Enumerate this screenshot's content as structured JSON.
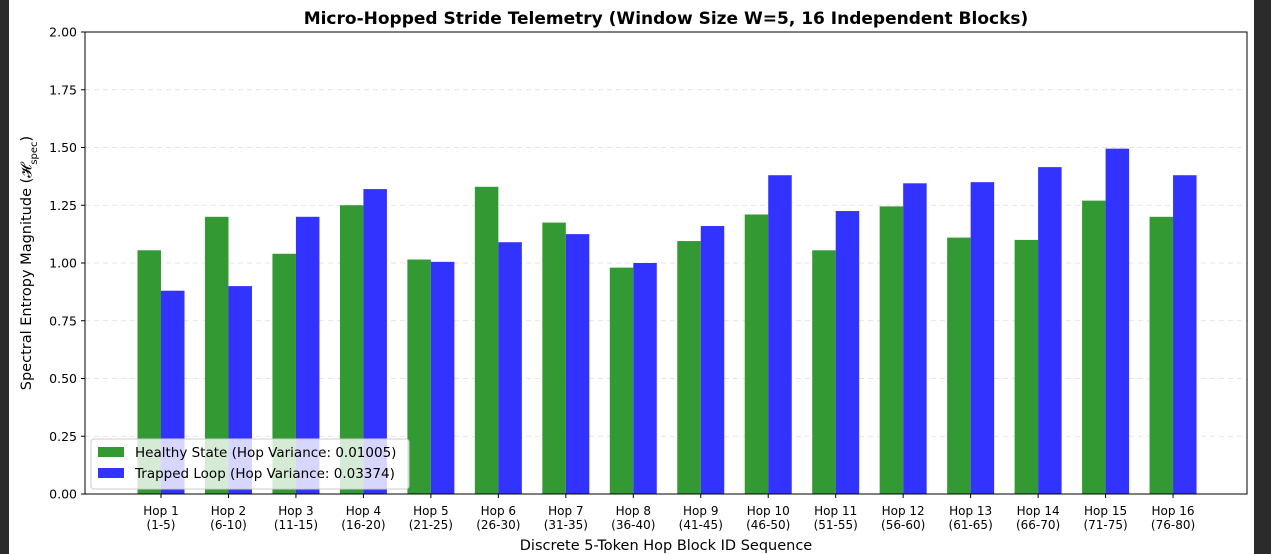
{
  "chart_data": {
    "type": "bar",
    "title": "Micro-Hopped Stride Telemetry (Window Size W=5, 16 Independent Blocks)",
    "xlabel": "Discrete 5-Token Hop Block ID Sequence",
    "ylabel": "Spectral Entropy Magnitude (𝓗",
    "ylabel_sub": "spec",
    "ylabel_close": ")",
    "ylim": [
      0,
      2.0
    ],
    "yticks": [
      "0.00",
      "0.25",
      "0.50",
      "0.75",
      "1.00",
      "1.25",
      "1.50",
      "1.75",
      "2.00"
    ],
    "grid": "horizontal dashed",
    "legend_position": "lower-left",
    "categories": [
      [
        "Hop 1",
        "(1-5)"
      ],
      [
        "Hop 2",
        "(6-10)"
      ],
      [
        "Hop 3",
        "(11-15)"
      ],
      [
        "Hop 4",
        "(16-20)"
      ],
      [
        "Hop 5",
        "(21-25)"
      ],
      [
        "Hop 6",
        "(26-30)"
      ],
      [
        "Hop 7",
        "(31-35)"
      ],
      [
        "Hop 8",
        "(36-40)"
      ],
      [
        "Hop 9",
        "(41-45)"
      ],
      [
        "Hop 10",
        "(46-50)"
      ],
      [
        "Hop 11",
        "(51-55)"
      ],
      [
        "Hop 12",
        "(56-60)"
      ],
      [
        "Hop 13",
        "(61-65)"
      ],
      [
        "Hop 14",
        "(66-70)"
      ],
      [
        "Hop 15",
        "(71-75)"
      ],
      [
        "Hop 16",
        "(76-80)"
      ]
    ],
    "series": [
      {
        "name": "Healthy State (Hop Variance: 0.01005)",
        "color": "#339933",
        "values": [
          1.055,
          1.2,
          1.04,
          1.25,
          1.015,
          1.33,
          1.175,
          0.98,
          1.095,
          1.21,
          1.055,
          1.245,
          1.11,
          1.1,
          1.27,
          1.2
        ]
      },
      {
        "name": "Trapped Loop (Hop Variance: 0.03374)",
        "color": "#3333ff",
        "values": [
          0.88,
          0.9,
          1.2,
          1.32,
          1.005,
          1.09,
          1.125,
          1.0,
          1.16,
          1.38,
          1.225,
          1.345,
          1.35,
          1.415,
          1.495,
          1.38
        ]
      }
    ]
  }
}
